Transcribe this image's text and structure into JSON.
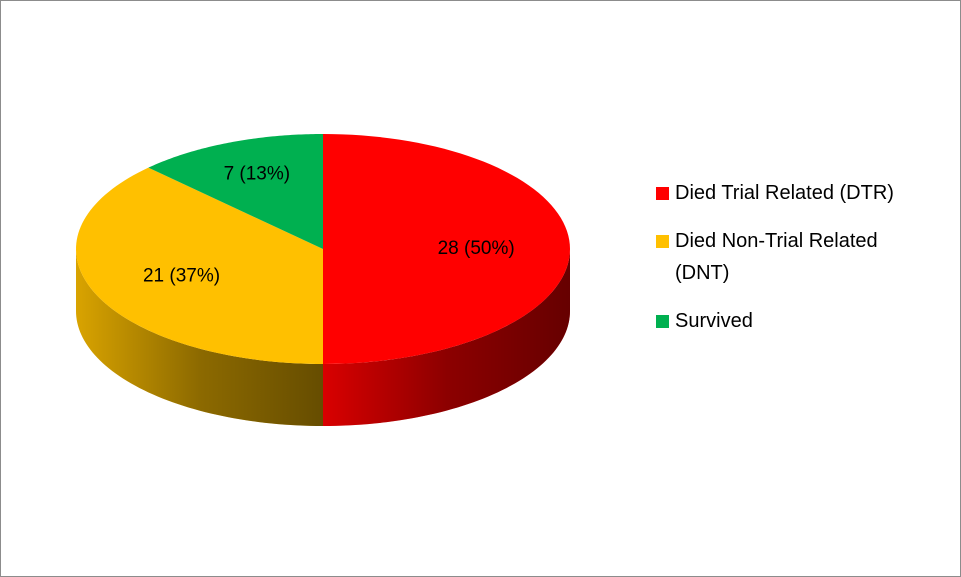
{
  "chart_data": {
    "type": "pie",
    "categories": [
      "Died Trial Related (DTR)",
      "Died Non-Trial Related (DNT)",
      "Survived"
    ],
    "values": [
      28,
      21,
      7
    ],
    "value_labels": [
      "28 (50%)",
      "21 (37%)",
      "7 (13%)"
    ],
    "colors": [
      "#ff0000",
      "#ffc000",
      "#00b050"
    ],
    "legend": "right"
  }
}
